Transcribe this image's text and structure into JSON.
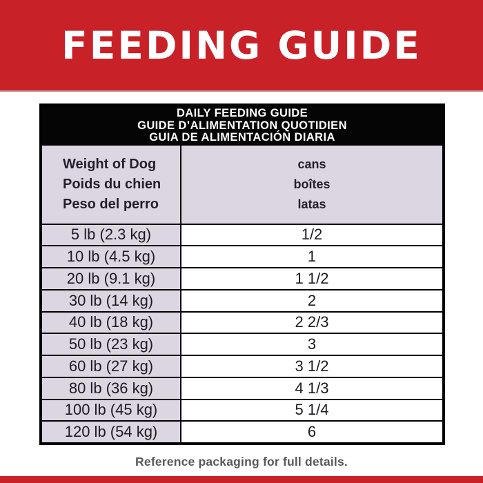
{
  "banner": {
    "title": "FEEDING GUIDE"
  },
  "table": {
    "title_lines": [
      "DAILY FEEDING GUIDE",
      "GUIDE D’ALIMENTATION QUOTIDIEN",
      "GUIA DE ALIMENTACIÓN DIARIA"
    ],
    "weight_header_lines": [
      "Weight of Dog",
      "Poids du chien",
      "Peso del perro"
    ],
    "cans_header_lines": [
      "cans",
      "boîtes",
      "latas"
    ],
    "rows": [
      {
        "weight": "5 lb (2.3 kg)",
        "cans": "1/2"
      },
      {
        "weight": "10 lb (4.5 kg)",
        "cans": "1"
      },
      {
        "weight": "20 lb (9.1 kg)",
        "cans": "1 1/2"
      },
      {
        "weight": "30 lb (14 kg)",
        "cans": "2"
      },
      {
        "weight": "40 lb (18 kg)",
        "cans": "2 2/3"
      },
      {
        "weight": "50 lb (23 kg)",
        "cans": "3"
      },
      {
        "weight": "60 lb (27 kg)",
        "cans": "3 1/2"
      },
      {
        "weight": "80 lb (36 kg)",
        "cans": "4 1/3"
      },
      {
        "weight": "100 lb (45 kg)",
        "cans": "5 1/4"
      },
      {
        "weight": "120 lb (54 kg)",
        "cans": "6"
      }
    ]
  },
  "footer": {
    "note": "Reference packaging for full details."
  },
  "colors": {
    "brand_red": "#c92128",
    "header_black": "#050505",
    "row_lavender": "#dcd6e2",
    "note_gray": "#58595b"
  }
}
